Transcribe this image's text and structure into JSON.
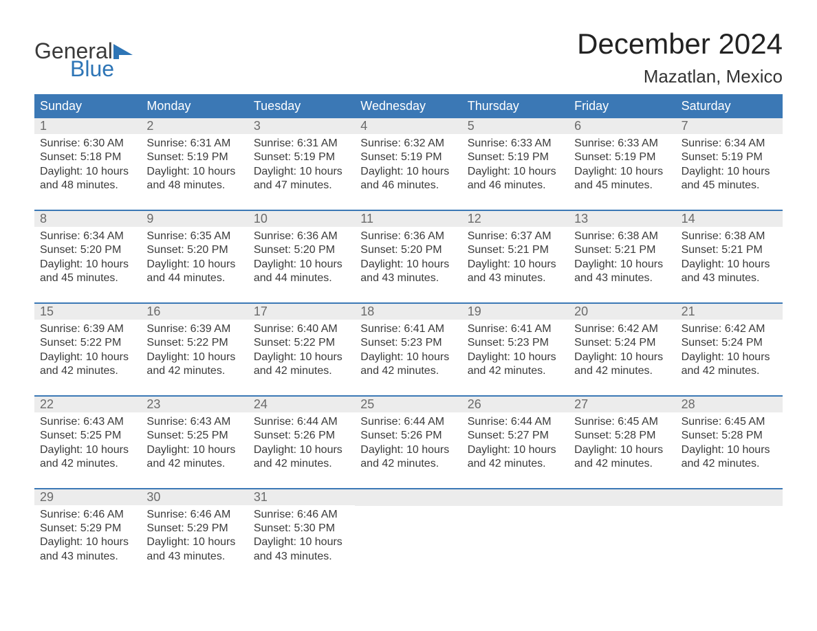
{
  "logo": {
    "text_general": "General",
    "text_blue": "Blue",
    "flag_color": "#2e75b6"
  },
  "title": "December 2024",
  "location": "Mazatlan, Mexico",
  "colors": {
    "header_bg": "#3b78b5",
    "header_text": "#ffffff",
    "daynum_bg": "#ececec",
    "daynum_text": "#6a6a6a",
    "body_text": "#3a3a3a",
    "week_border": "#3b78b5",
    "background": "#ffffff"
  },
  "typography": {
    "title_fontsize": 42,
    "location_fontsize": 26,
    "dayheader_fontsize": 18,
    "daynum_fontsize": 18,
    "body_fontsize": 16,
    "font_family": "Arial"
  },
  "layout": {
    "columns": 7,
    "rows": 5
  },
  "day_names": [
    "Sunday",
    "Monday",
    "Tuesday",
    "Wednesday",
    "Thursday",
    "Friday",
    "Saturday"
  ],
  "labels": {
    "sunrise_prefix": "Sunrise: ",
    "sunset_prefix": "Sunset: ",
    "daylight_prefix": "Daylight: "
  },
  "weeks": [
    [
      {
        "num": "1",
        "sunrise": "6:30 AM",
        "sunset": "5:18 PM",
        "daylight": "10 hours and 48 minutes."
      },
      {
        "num": "2",
        "sunrise": "6:31 AM",
        "sunset": "5:19 PM",
        "daylight": "10 hours and 48 minutes."
      },
      {
        "num": "3",
        "sunrise": "6:31 AM",
        "sunset": "5:19 PM",
        "daylight": "10 hours and 47 minutes."
      },
      {
        "num": "4",
        "sunrise": "6:32 AM",
        "sunset": "5:19 PM",
        "daylight": "10 hours and 46 minutes."
      },
      {
        "num": "5",
        "sunrise": "6:33 AM",
        "sunset": "5:19 PM",
        "daylight": "10 hours and 46 minutes."
      },
      {
        "num": "6",
        "sunrise": "6:33 AM",
        "sunset": "5:19 PM",
        "daylight": "10 hours and 45 minutes."
      },
      {
        "num": "7",
        "sunrise": "6:34 AM",
        "sunset": "5:19 PM",
        "daylight": "10 hours and 45 minutes."
      }
    ],
    [
      {
        "num": "8",
        "sunrise": "6:34 AM",
        "sunset": "5:20 PM",
        "daylight": "10 hours and 45 minutes."
      },
      {
        "num": "9",
        "sunrise": "6:35 AM",
        "sunset": "5:20 PM",
        "daylight": "10 hours and 44 minutes."
      },
      {
        "num": "10",
        "sunrise": "6:36 AM",
        "sunset": "5:20 PM",
        "daylight": "10 hours and 44 minutes."
      },
      {
        "num": "11",
        "sunrise": "6:36 AM",
        "sunset": "5:20 PM",
        "daylight": "10 hours and 43 minutes."
      },
      {
        "num": "12",
        "sunrise": "6:37 AM",
        "sunset": "5:21 PM",
        "daylight": "10 hours and 43 minutes."
      },
      {
        "num": "13",
        "sunrise": "6:38 AM",
        "sunset": "5:21 PM",
        "daylight": "10 hours and 43 minutes."
      },
      {
        "num": "14",
        "sunrise": "6:38 AM",
        "sunset": "5:21 PM",
        "daylight": "10 hours and 43 minutes."
      }
    ],
    [
      {
        "num": "15",
        "sunrise": "6:39 AM",
        "sunset": "5:22 PM",
        "daylight": "10 hours and 42 minutes."
      },
      {
        "num": "16",
        "sunrise": "6:39 AM",
        "sunset": "5:22 PM",
        "daylight": "10 hours and 42 minutes."
      },
      {
        "num": "17",
        "sunrise": "6:40 AM",
        "sunset": "5:22 PM",
        "daylight": "10 hours and 42 minutes."
      },
      {
        "num": "18",
        "sunrise": "6:41 AM",
        "sunset": "5:23 PM",
        "daylight": "10 hours and 42 minutes."
      },
      {
        "num": "19",
        "sunrise": "6:41 AM",
        "sunset": "5:23 PM",
        "daylight": "10 hours and 42 minutes."
      },
      {
        "num": "20",
        "sunrise": "6:42 AM",
        "sunset": "5:24 PM",
        "daylight": "10 hours and 42 minutes."
      },
      {
        "num": "21",
        "sunrise": "6:42 AM",
        "sunset": "5:24 PM",
        "daylight": "10 hours and 42 minutes."
      }
    ],
    [
      {
        "num": "22",
        "sunrise": "6:43 AM",
        "sunset": "5:25 PM",
        "daylight": "10 hours and 42 minutes."
      },
      {
        "num": "23",
        "sunrise": "6:43 AM",
        "sunset": "5:25 PM",
        "daylight": "10 hours and 42 minutes."
      },
      {
        "num": "24",
        "sunrise": "6:44 AM",
        "sunset": "5:26 PM",
        "daylight": "10 hours and 42 minutes."
      },
      {
        "num": "25",
        "sunrise": "6:44 AM",
        "sunset": "5:26 PM",
        "daylight": "10 hours and 42 minutes."
      },
      {
        "num": "26",
        "sunrise": "6:44 AM",
        "sunset": "5:27 PM",
        "daylight": "10 hours and 42 minutes."
      },
      {
        "num": "27",
        "sunrise": "6:45 AM",
        "sunset": "5:28 PM",
        "daylight": "10 hours and 42 minutes."
      },
      {
        "num": "28",
        "sunrise": "6:45 AM",
        "sunset": "5:28 PM",
        "daylight": "10 hours and 42 minutes."
      }
    ],
    [
      {
        "num": "29",
        "sunrise": "6:46 AM",
        "sunset": "5:29 PM",
        "daylight": "10 hours and 43 minutes."
      },
      {
        "num": "30",
        "sunrise": "6:46 AM",
        "sunset": "5:29 PM",
        "daylight": "10 hours and 43 minutes."
      },
      {
        "num": "31",
        "sunrise": "6:46 AM",
        "sunset": "5:30 PM",
        "daylight": "10 hours and 43 minutes."
      },
      null,
      null,
      null,
      null
    ]
  ]
}
